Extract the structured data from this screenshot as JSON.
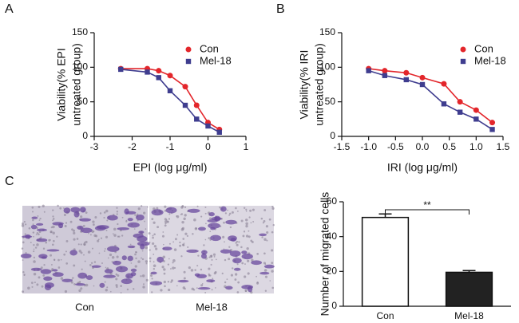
{
  "panel_labels": [
    "A",
    "B",
    "C"
  ],
  "chart_data": [
    {
      "type": "line",
      "xlabel": "EPI (log μg/ml)",
      "ylabel": [
        "Viability(% EPI",
        "untreated group)"
      ],
      "x": [
        -2.3,
        -1.6,
        -1.3,
        -1.0,
        -0.6,
        -0.3,
        0.0,
        0.3
      ],
      "series": [
        {
          "name": "Con",
          "color": "#e3262b",
          "marker": "circle",
          "values": [
            98,
            98,
            95,
            88,
            72,
            45,
            20,
            10
          ]
        },
        {
          "name": "Mel-18",
          "color": "#3f3d8f",
          "marker": "square",
          "values": [
            97,
            93,
            85,
            66,
            45,
            25,
            15,
            6
          ]
        }
      ],
      "xlim": [
        -3,
        1
      ],
      "xticks": [
        -3,
        -2,
        -1,
        0,
        1
      ],
      "ylim": [
        0,
        150
      ],
      "yticks": [
        0,
        50,
        100,
        150
      ]
    },
    {
      "type": "line",
      "xlabel": "IRI (log μg/ml)",
      "ylabel": [
        "Viability(% IRI",
        "untreated group)"
      ],
      "x": [
        -1.0,
        -0.7,
        -0.3,
        0.0,
        0.4,
        0.7,
        1.0,
        1.3
      ],
      "series": [
        {
          "name": "Con",
          "color": "#e3262b",
          "marker": "circle",
          "values": [
            98,
            95,
            92,
            85,
            76,
            50,
            38,
            20
          ]
        },
        {
          "name": "Mel-18",
          "color": "#3f3d8f",
          "marker": "square",
          "values": [
            95,
            88,
            82,
            75,
            47,
            35,
            25,
            10
          ]
        }
      ],
      "xlim": [
        -1.5,
        1.5
      ],
      "xticks": [
        -1.5,
        {
          "value": -1,
          "label": "-1.0"
        },
        -0.5,
        {
          "value": 0,
          "label": "0.0"
        },
        0.5,
        {
          "value": 1,
          "label": "1.0"
        },
        1.5
      ],
      "ylim": [
        0,
        150
      ],
      "yticks": [
        0,
        50,
        100,
        150
      ]
    },
    {
      "type": "bar",
      "ylabel": [
        "Number of migrated cells"
      ],
      "categories": [
        "Con",
        "Mel-18"
      ],
      "values": [
        51,
        19.5
      ],
      "errors": [
        2,
        1
      ],
      "colors": [
        "#ffffff",
        "#222222"
      ],
      "annotation": "**",
      "ylim": [
        0,
        60
      ],
      "yticks": [
        0,
        20,
        40,
        60
      ]
    }
  ],
  "images": {
    "labels": [
      "Con",
      "Mel-18"
    ]
  }
}
